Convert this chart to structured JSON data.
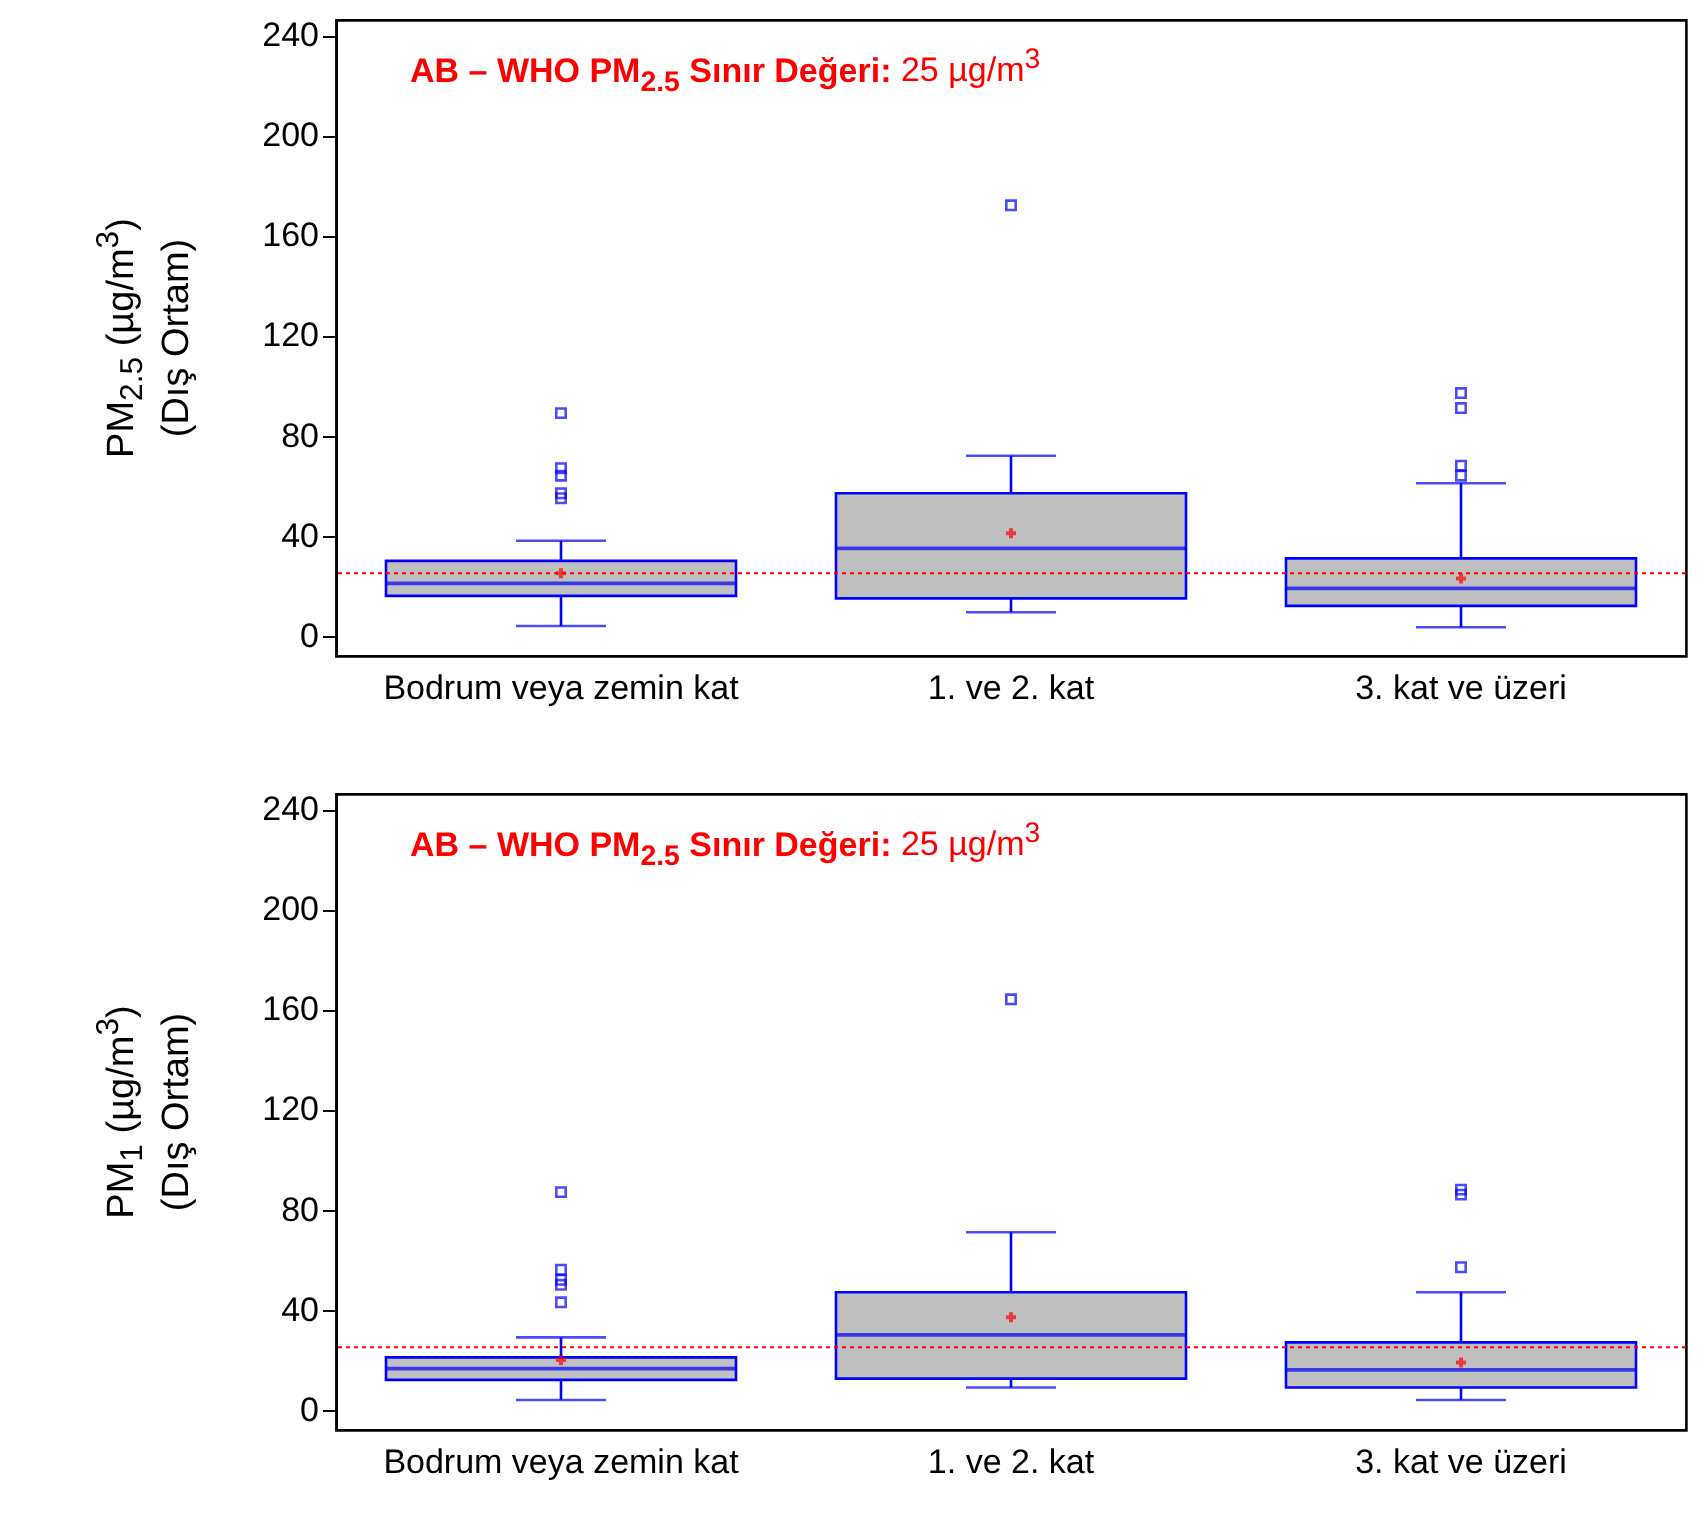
{
  "chart_data": [
    {
      "type": "box",
      "ylabel": "PM$_{2.5}$ (µg/m$^{3}$)\n(Dış Ortam)",
      "categories": [
        "Bodrum veya zemin kat",
        "1. ve 2. kat",
        "3. kat ve üzeri"
      ],
      "ylim": [
        -8,
        246
      ],
      "yticks": [
        0,
        40,
        80,
        120,
        160,
        200,
        240
      ],
      "annotations": [
        "AB – WHO PM$_{2.5}$ Sınır Değeri: 25 µg/m$^{3}$"
      ],
      "ref_lines": [
        {
          "axis": "y",
          "value": 25,
          "color": "#ff0000",
          "line_style": "dotted"
        }
      ],
      "series": [
        {
          "color": "#0000ff",
          "boxes": [
            {
              "low": 4,
              "q1": 16,
              "median": 21,
              "q3": 30,
              "high": 38,
              "mean": 25,
              "outliers": [
                55,
                57,
                64,
                67,
                89
              ]
            },
            {
              "low": 9.5,
              "q1": 15,
              "median": 35,
              "q3": 57,
              "high": 72,
              "mean": 41,
              "outliers": [
                172
              ]
            },
            {
              "low": 3.5,
              "q1": 12,
              "median": 19,
              "q3": 31,
              "high": 61,
              "mean": 23,
              "outliers": [
                64,
                68,
                91,
                97
              ]
            }
          ]
        }
      ]
    },
    {
      "type": "box",
      "ylabel": "PM$_{1}$ (µg/m$^{3}$)\n(Dış Ortam)",
      "categories": [
        "Bodrum veya zemin kat",
        "1. ve 2. kat",
        "3. kat ve üzeri"
      ],
      "ylim": [
        -8,
        246
      ],
      "yticks": [
        0,
        40,
        80,
        120,
        160,
        200,
        240
      ],
      "annotations": [
        "AB – WHO PM$_{2.5}$ Sınır Değeri: 25 µg/m$^{3}$"
      ],
      "ref_lines": [
        {
          "axis": "y",
          "value": 25,
          "color": "#ff0000",
          "line_style": "dotted"
        }
      ],
      "series": [
        {
          "color": "#0000ff",
          "boxes": [
            {
              "low": 4,
              "q1": 12,
              "median": 16.5,
              "q3": 21,
              "high": 29,
              "mean": 20,
              "outliers": [
                43,
                50,
                52,
                56,
                87
              ]
            },
            {
              "low": 9,
              "q1": 12.5,
              "median": 30,
              "q3": 47,
              "high": 71,
              "mean": 37,
              "outliers": [
                164
              ]
            },
            {
              "low": 4,
              "q1": 9,
              "median": 16,
              "q3": 27,
              "high": 47,
              "mean": 19,
              "outliers": [
                57,
                86,
                88
              ]
            }
          ]
        }
      ]
    }
  ]
}
